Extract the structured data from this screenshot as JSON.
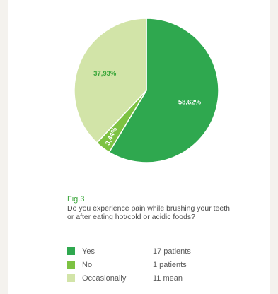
{
  "figure": {
    "label": "Fig.3",
    "question": "Do you experience pain while brushing your teeth or after eating hot/cold or acidic foods?"
  },
  "chart_data": {
    "type": "pie",
    "slices": [
      {
        "name": "Yes",
        "value": 58.62,
        "label": "58,62%",
        "count_text": "17 patients",
        "color": "#2fa84f",
        "label_color": "#ffffff"
      },
      {
        "name": "No",
        "value": 3.44,
        "label": "3,44%",
        "count_text": "1 patients",
        "color": "#7dc242",
        "label_color": "#ffffff"
      },
      {
        "name": "Occasionally",
        "value": 37.93,
        "label": "37,93%",
        "count_text": "11 mean",
        "color": "#d2e4a8",
        "label_color": "#3aa63a"
      }
    ],
    "legend_position": "bottom-left"
  }
}
